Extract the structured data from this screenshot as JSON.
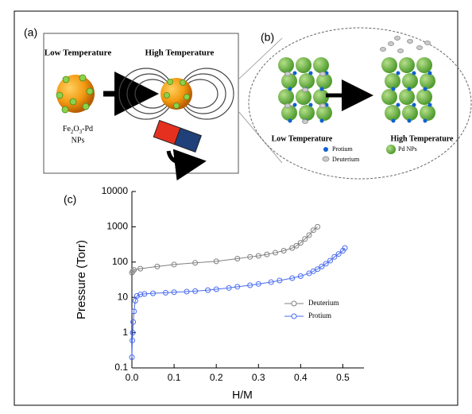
{
  "panel_a": {
    "label": "(a)",
    "low": "Low Temperature",
    "high": "High Temperature",
    "formula": [
      "Fe",
      "2",
      "O",
      "3",
      "-Pd"
    ],
    "formula_line2": "NPs"
  },
  "panel_b": {
    "label": "(b)",
    "low": "Low Temperature",
    "high": "High Temperature",
    "legend": [
      "Protium",
      "Deuterium",
      "Pd NPs"
    ]
  },
  "chart_data": {
    "type": "line",
    "panel_label": "(c)",
    "x_label": "H/M",
    "y_label": "Pressure (Torr)",
    "log_y": true,
    "xlim": [
      0,
      0.55
    ],
    "ylim": [
      0.1,
      10000
    ],
    "xticks": [
      {
        "value": 0,
        "label": "0.0"
      },
      0.1,
      0.2,
      0.3,
      0.4,
      0.5
    ],
    "yticks": [
      0.1,
      1,
      10,
      100,
      1000,
      10000
    ],
    "legend_position": "right",
    "series": [
      {
        "name": "Deuterium",
        "color": "#808080",
        "x": [
          0,
          0.002,
          0.005,
          0.02,
          0.06,
          0.1,
          0.15,
          0.2,
          0.25,
          0.28,
          0.3,
          0.32,
          0.34,
          0.36,
          0.38,
          0.39,
          0.4,
          0.41,
          0.42,
          0.43,
          0.44
        ],
        "values": [
          50,
          55,
          60,
          65,
          75,
          85,
          95,
          105,
          125,
          140,
          150,
          165,
          185,
          210,
          250,
          290,
          350,
          450,
          580,
          800,
          1000
        ]
      },
      {
        "name": "Protium",
        "color": "#4a6cf0",
        "x": [
          0,
          0.001,
          0.002,
          0.003,
          0.005,
          0.008,
          0.012,
          0.02,
          0.03,
          0.05,
          0.08,
          0.1,
          0.13,
          0.15,
          0.18,
          0.2,
          0.23,
          0.25,
          0.28,
          0.3,
          0.33,
          0.35,
          0.38,
          0.4,
          0.42,
          0.43,
          0.44,
          0.45,
          0.46,
          0.47,
          0.48,
          0.49,
          0.5,
          0.505
        ],
        "values": [
          0.2,
          0.6,
          1,
          2,
          4,
          8,
          11,
          12,
          12.5,
          13,
          13.5,
          14,
          14.5,
          15,
          16,
          17,
          18.5,
          20,
          22,
          24,
          27,
          30,
          35,
          40,
          48,
          55,
          63,
          75,
          90,
          110,
          140,
          170,
          210,
          250
        ]
      }
    ]
  }
}
